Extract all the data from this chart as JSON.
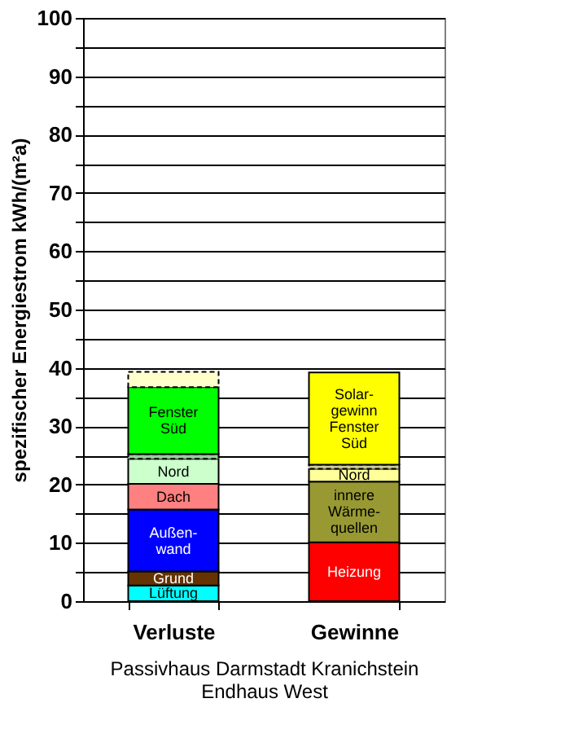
{
  "chart_data": {
    "type": "bar",
    "stacked": true,
    "categories": [
      "Verluste",
      "Gewinne"
    ],
    "xlabel": "Passivhaus Darmstadt Kranichstein\nEndhaus West",
    "ylabel": "spezifischer Energiestrom kWh/(m²a)",
    "ylim": [
      0,
      100
    ],
    "yticks": [
      0,
      {
        "value": 5,
        "label": null
      },
      10,
      {
        "value": 15,
        "label": null
      },
      20,
      {
        "value": 25,
        "label": null
      },
      30,
      {
        "value": 35,
        "label": null
      },
      40,
      {
        "value": 45,
        "label": null
      },
      50,
      {
        "value": 55,
        "label": null
      },
      60,
      {
        "value": 65,
        "label": null
      },
      70,
      {
        "value": 75,
        "label": null
      },
      80,
      {
        "value": 85,
        "label": null
      },
      90,
      {
        "value": 95,
        "label": null
      },
      100
    ],
    "grid": "y",
    "legend": false,
    "series": [
      {
        "name": "Lüftung",
        "color": "#00ffff",
        "values": [
          2.7,
          null
        ]
      },
      {
        "name": "Grund",
        "color": "#663300",
        "values": [
          2.4,
          null
        ]
      },
      {
        "name": "Außen-\nwand",
        "color": "#0000ff",
        "values": [
          10.6,
          null
        ]
      },
      {
        "name": "Dach",
        "color": "#ff8080",
        "values": [
          4.4,
          null
        ]
      },
      {
        "name": "Nord",
        "color": "#ccffcc",
        "values": [
          4.3,
          null
        ]
      },
      {
        "color": "#99cc99",
        "values": [
          0.8,
          null
        ]
      },
      {
        "name": "Fenster\nSüd",
        "color": "#00ff00",
        "values": [
          11.5,
          null
        ]
      },
      {
        "color": "#ffffcc",
        "values": [
          2.6,
          null
        ]
      },
      {
        "name": "Heizung",
        "color": "#ff0000",
        "values": [
          null,
          10.1
        ]
      },
      {
        "name": "innere\nWärme-\nquellen",
        "color": "#999933",
        "values": [
          null,
          10.4
        ]
      },
      {
        "name": "Nord",
        "color": "#ffff99",
        "values": [
          null,
          2.2
        ]
      },
      {
        "color": "#cccc99",
        "values": [
          null,
          0.7
        ]
      },
      {
        "name": "Solar-\ngewinn\nFenster\nSüd",
        "color": "#ffff00",
        "values": [
          null,
          15.8
        ]
      }
    ]
  }
}
